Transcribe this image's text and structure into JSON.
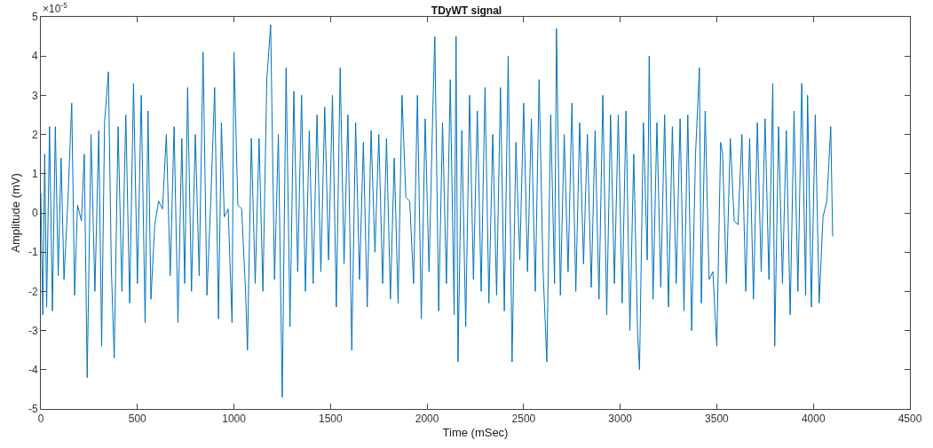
{
  "chart_data": {
    "type": "line",
    "title": "TDyWT signal",
    "xlabel": "Time (mSec)",
    "ylabel": "Amplitude (mV)",
    "annotations": [
      "×10$^{-5}$"
    ],
    "x": [
      0,
      10,
      20,
      30,
      45,
      60,
      75,
      90,
      105,
      120,
      140,
      160,
      175,
      190,
      210,
      225,
      240,
      260,
      280,
      300,
      315,
      330,
      350,
      365,
      380,
      400,
      420,
      440,
      460,
      480,
      500,
      520,
      540,
      555,
      570,
      590,
      610,
      630,
      650,
      670,
      690,
      710,
      730,
      745,
      760,
      780,
      800,
      820,
      840,
      860,
      880,
      900,
      920,
      935,
      950,
      970,
      990,
      1000,
      1020,
      1040,
      1060,
      1070,
      1090,
      1110,
      1130,
      1150,
      1170,
      1190,
      1210,
      1230,
      1250,
      1270,
      1290,
      1310,
      1330,
      1350,
      1370,
      1390,
      1410,
      1430,
      1450,
      1470,
      1490,
      1510,
      1530,
      1550,
      1570,
      1590,
      1610,
      1630,
      1650,
      1670,
      1690,
      1710,
      1730,
      1750,
      1770,
      1790,
      1810,
      1830,
      1850,
      1870,
      1890,
      1910,
      1930,
      1950,
      1970,
      1990,
      2010,
      2030,
      2040,
      2060,
      2080,
      2100,
      2120,
      2140,
      2150,
      2160,
      2180,
      2200,
      2220,
      2240,
      2260,
      2280,
      2300,
      2320,
      2340,
      2360,
      2380,
      2400,
      2420,
      2440,
      2460,
      2480,
      2500,
      2520,
      2540,
      2560,
      2580,
      2600,
      2620,
      2640,
      2660,
      2670,
      2690,
      2710,
      2730,
      2750,
      2770,
      2790,
      2810,
      2830,
      2850,
      2870,
      2890,
      2910,
      2930,
      2950,
      2970,
      2990,
      3010,
      3030,
      3050,
      3070,
      3090,
      3100,
      3120,
      3140,
      3150,
      3170,
      3190,
      3210,
      3230,
      3250,
      3270,
      3290,
      3310,
      3330,
      3350,
      3370,
      3390,
      3410,
      3420,
      3440,
      3460,
      3480,
      3500,
      3520,
      3530,
      3550,
      3570,
      3590,
      3610,
      3630,
      3650,
      3670,
      3690,
      3710,
      3730,
      3750,
      3770,
      3790,
      3800,
      3820,
      3840,
      3860,
      3880,
      3900,
      3920,
      3940,
      3960,
      3970,
      3990,
      4010,
      4030,
      4050,
      4070,
      4090,
      4100
    ],
    "series": [
      {
        "color": "#0072bd",
        "values": [
          0.5,
          -2.6,
          1.5,
          -2.4,
          2.2,
          -2.5,
          2.2,
          -1.6,
          1.4,
          -1.7,
          0.3,
          2.8,
          -2.1,
          0.2,
          -0.2,
          1.5,
          -4.2,
          2.0,
          -2.0,
          2.1,
          -3.4,
          2.3,
          3.6,
          -1.4,
          -3.7,
          2.2,
          -2.0,
          2.5,
          -2.3,
          3.3,
          -1.8,
          3.0,
          -2.8,
          2.6,
          -2.2,
          -0.3,
          0.3,
          0.1,
          2.0,
          -1.6,
          2.2,
          -2.8,
          1.9,
          -1.8,
          3.2,
          -2.0,
          2.0,
          -1.6,
          4.1,
          -2.1,
          0.3,
          3.2,
          -2.7,
          2.3,
          -0.1,
          0.1,
          -2.8,
          4.1,
          0.2,
          0.1,
          -2.0,
          -3.5,
          1.9,
          -1.8,
          1.9,
          -2.0,
          3.4,
          4.8,
          -1.7,
          2.0,
          -4.7,
          3.7,
          -2.9,
          3.1,
          -1.5,
          3.0,
          -2.0,
          2.1,
          -1.8,
          2.5,
          -1.5,
          2.7,
          -1.2,
          3.0,
          -2.4,
          3.7,
          -1.3,
          2.5,
          -3.5,
          2.3,
          -1.7,
          1.8,
          -2.4,
          2.1,
          -1.0,
          2.0,
          -1.8,
          1.9,
          -2.2,
          1.4,
          -2.3,
          3.0,
          0.4,
          0.3,
          -1.8,
          3.0,
          -2.7,
          2.4,
          -1.5,
          2.7,
          4.5,
          -2.5,
          2.3,
          -1.8,
          3.4,
          -2.6,
          4.5,
          -3.8,
          2.1,
          -2.9,
          3.0,
          -1.7,
          2.6,
          -2.0,
          3.2,
          -2.3,
          2.0,
          -2.1,
          3.2,
          -2.5,
          4.0,
          -3.8,
          1.8,
          -1.2,
          2.8,
          -1.5,
          2.4,
          -2.0,
          3.4,
          -1.4,
          -3.8,
          2.5,
          -1.8,
          4.7,
          -2.1,
          2.0,
          -1.5,
          2.8,
          -2.0,
          2.3,
          -1.3,
          2.0,
          -1.9,
          2.1,
          -2.2,
          3.0,
          -2.6,
          2.5,
          -1.8,
          2.5,
          -2.3,
          2.6,
          -3.0,
          1.5,
          -3.1,
          -4.0,
          2.3,
          -1.2,
          4.0,
          -2.2,
          2.3,
          -1.9,
          2.5,
          -2.4,
          2.2,
          -1.8,
          2.4,
          -2.5,
          2.5,
          -3.0,
          1.5,
          3.7,
          -2.3,
          2.6,
          -1.7,
          -1.5,
          -3.4,
          1.8,
          1.5,
          -1.8,
          1.9,
          -0.2,
          -0.3,
          2.0,
          -2.0,
          1.9,
          -2.2,
          2.3,
          -1.5,
          2.4,
          -1.7,
          3.3,
          -3.4,
          2.2,
          -1.8,
          2.1,
          -2.6,
          2.6,
          -2.0,
          3.3,
          -2.1,
          3.0,
          -2.4,
          2.5,
          -2.3,
          -0.1,
          0.3,
          2.2,
          -0.6
        ]
      }
    ],
    "xlim": [
      0,
      4500
    ],
    "xticks": [
      0,
      500,
      1000,
      1500,
      2000,
      2500,
      3000,
      3500,
      4000,
      4500
    ],
    "ylim": [
      -5,
      5
    ],
    "yticks": [
      -5,
      -4,
      -3,
      -2,
      -1,
      0,
      1,
      2,
      3,
      4,
      5
    ],
    "marker": "none",
    "line_style": "solid"
  }
}
